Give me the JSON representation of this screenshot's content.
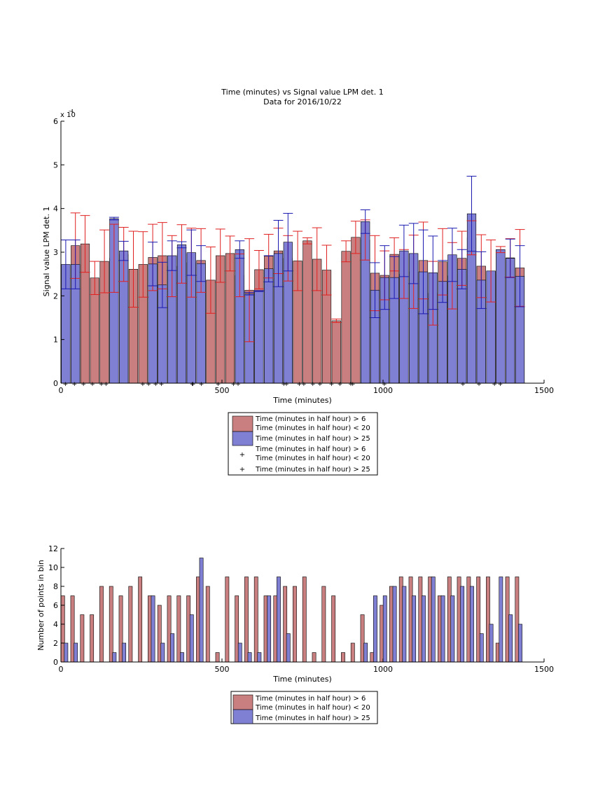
{
  "colors": {
    "red_fill": "#c97f7f",
    "blue_fill": "#7f7fd4",
    "red_marker": "#e02020",
    "blue_marker": "#1a1ab0",
    "axis": "#000000"
  },
  "chart_data": [
    {
      "type": "bar",
      "title": "Time (minutes) vs Signal value LPM det. 1",
      "subtitle": "Data for 2016/10/22",
      "xlabel": "Time (minutes)",
      "ylabel": "Signal value LPM det. 1",
      "exponent_label": "x 10",
      "exponent_power": "-4",
      "xlim": [
        0,
        1500
      ],
      "ylim": [
        0,
        6
      ],
      "scale_factor": 0.0001,
      "xticks": [
        "0",
        "500",
        "1000",
        "1500"
      ],
      "yticks": [
        "0",
        "1",
        "2",
        "3",
        "4",
        "5",
        "6"
      ],
      "legend": {
        "placement": "below",
        "entries": [
          {
            "label": "Time (minutes in half hour) > 6",
            "label2": "Time (minutes in half hour) < 20",
            "kind": "bar",
            "color": "red"
          },
          {
            "label": "Time (minutes in half hour) > 25",
            "kind": "bar",
            "color": "blue"
          },
          {
            "label": "Time (minutes in half hour) > 6",
            "label2": "Time (minutes in half hour) < 20",
            "kind": "marker",
            "color": "red"
          },
          {
            "label": "Time (minutes in half hour) > 25",
            "kind": "marker",
            "color": "blue"
          }
        ]
      },
      "series": [
        {
          "name": "Time (minutes in half hour) > 6 / < 20",
          "color": "red",
          "x": [
            45,
            75,
            105,
            135,
            165,
            195,
            225,
            255,
            285,
            315,
            345,
            375,
            405,
            435,
            465,
            495,
            525,
            555,
            585,
            615,
            645,
            675,
            705,
            735,
            765,
            795,
            825,
            855,
            885,
            915,
            945,
            975,
            1005,
            1035,
            1065,
            1095,
            1125,
            1155,
            1185,
            1215,
            1245,
            1275,
            1305,
            1335,
            1365,
            1395,
            1425
          ],
          "values": [
            3.15,
            3.19,
            2.41,
            2.79,
            2.86,
            2.95,
            2.61,
            2.72,
            2.88,
            2.92,
            2.68,
            2.96,
            2.76,
            2.81,
            2.36,
            2.92,
            2.97,
            2.47,
            2.13,
            2.6,
            2.91,
            3.03,
            2.86,
            2.8,
            3.26,
            2.84,
            2.59,
            1.43,
            3.02,
            3.34,
            3.28,
            2.52,
            2.47,
            2.95,
            2.5,
            2.55,
            2.81,
            2.06,
            2.78,
            2.46,
            2.86,
            3.33,
            2.68,
            2.57,
            3.06,
            2.87,
            2.64
          ],
          "err": [
            0.75,
            0.65,
            0.38,
            0.72,
            0.78,
            0.62,
            0.87,
            0.75,
            0.76,
            0.76,
            0.7,
            0.67,
            0.79,
            0.73,
            0.76,
            0.61,
            0.4,
            0.49,
            1.18,
            0.44,
            0.5,
            0.52,
            0.52,
            0.68,
            0.07,
            0.72,
            0.57,
            0.04,
            0.24,
            0.37,
            0.46,
            0.86,
            0.56,
            0.38,
            0.56,
            0.84,
            0.88,
            0.73,
            0.76,
            0.76,
            0.62,
            0.39,
            0.72,
            0.71,
            0.07,
            0.44,
            0.88
          ]
        },
        {
          "name": "Time (minutes in half hour) > 25",
          "color": "blue",
          "x": [
            15,
            45,
            165,
            195,
            285,
            315,
            345,
            375,
            405,
            435,
            555,
            585,
            615,
            645,
            675,
            705,
            945,
            975,
            1005,
            1035,
            1065,
            1095,
            1125,
            1155,
            1185,
            1215,
            1245,
            1275,
            1305,
            1335,
            1365,
            1395,
            1425
          ],
          "values": [
            2.72,
            2.72,
            3.77,
            3.03,
            2.73,
            2.25,
            2.92,
            3.17,
            2.99,
            2.74,
            3.06,
            2.05,
            2.11,
            2.62,
            2.97,
            3.23,
            3.7,
            2.13,
            2.42,
            2.42,
            3.03,
            2.97,
            2.55,
            2.53,
            2.33,
            2.94,
            2.61,
            3.88,
            2.36,
            2.57,
            3.06,
            2.86,
            2.45
          ],
          "err": [
            0.56,
            0.56,
            0.03,
            0.22,
            0.5,
            0.52,
            0.34,
            0.07,
            0.52,
            0.41,
            0.2,
            0.03,
            0.01,
            0.3,
            0.76,
            0.66,
            0.27,
            0.63,
            0.73,
            0.48,
            0.59,
            0.69,
            0.96,
            0.84,
            0.48,
            0.61,
            0.45,
            0.86,
            0.65,
            0.0,
            0.0,
            0.44,
            0.7
          ]
        }
      ],
      "raw_points_red": [
        70,
        98,
        126,
        254,
        294,
        408,
        436,
        536,
        550,
        754,
        782,
        840,
        866,
        1004,
        1364
      ],
      "raw_points_blue": [
        14,
        42,
        140,
        272,
        312,
        410,
        488,
        692,
        700,
        740,
        804,
        900,
        906,
        1248,
        1298,
        1346
      ]
    },
    {
      "type": "bar",
      "title": "",
      "xlabel": "Time (minutes)",
      "ylabel": "Number of points in bin",
      "xlim": [
        0,
        1500
      ],
      "ylim": [
        0,
        12
      ],
      "xticks": [
        "0",
        "500",
        "1000",
        "1500"
      ],
      "yticks": [
        "0",
        "2",
        "4",
        "6",
        "8",
        "10",
        "12"
      ],
      "legend": {
        "placement": "below",
        "entries": [
          {
            "label": "Time (minutes in half hour) > 6",
            "label2": "Time (minutes in half hour) < 20",
            "kind": "bar",
            "color": "red"
          },
          {
            "label": "Time (minutes in half hour) > 25",
            "kind": "bar",
            "color": "blue"
          }
        ]
      },
      "series": [
        {
          "name": "Time (minutes in half hour) > 6 / < 20",
          "color": "red",
          "x": [
            6,
            36,
            66,
            96,
            126,
            156,
            186,
            216,
            246,
            276,
            306,
            336,
            366,
            396,
            426,
            456,
            486,
            516,
            546,
            576,
            606,
            636,
            666,
            696,
            726,
            756,
            786,
            816,
            846,
            876,
            906,
            936,
            966,
            996,
            1026,
            1056,
            1086,
            1116,
            1146,
            1176,
            1206,
            1236,
            1266,
            1296,
            1326,
            1356,
            1386,
            1416
          ],
          "values": [
            7,
            7,
            5,
            5,
            8,
            8,
            7,
            8,
            9,
            7,
            6,
            7,
            7,
            7,
            9,
            8,
            1,
            9,
            7,
            9,
            9,
            7,
            7,
            8,
            8,
            9,
            1,
            8,
            7,
            1,
            2,
            5,
            1,
            6,
            8,
            9,
            9,
            9,
            9,
            7,
            9,
            9,
            9,
            9,
            9,
            2,
            9,
            9
          ]
        },
        {
          "name": "Time (minutes in half hour) > 25",
          "color": "blue",
          "x": [
            16,
            46,
            166,
            196,
            286,
            316,
            346,
            376,
            406,
            436,
            556,
            586,
            616,
            646,
            676,
            706,
            946,
            976,
            1006,
            1036,
            1066,
            1096,
            1126,
            1156,
            1186,
            1216,
            1246,
            1276,
            1306,
            1336,
            1366,
            1396,
            1426
          ],
          "values": [
            2,
            2,
            1,
            2,
            7,
            2,
            3,
            1,
            5,
            11,
            2,
            1,
            1,
            7,
            9,
            3,
            2,
            7,
            7,
            8,
            8,
            7,
            7,
            9,
            7,
            7,
            8,
            8,
            3,
            4,
            9,
            5,
            4
          ]
        }
      ]
    }
  ]
}
